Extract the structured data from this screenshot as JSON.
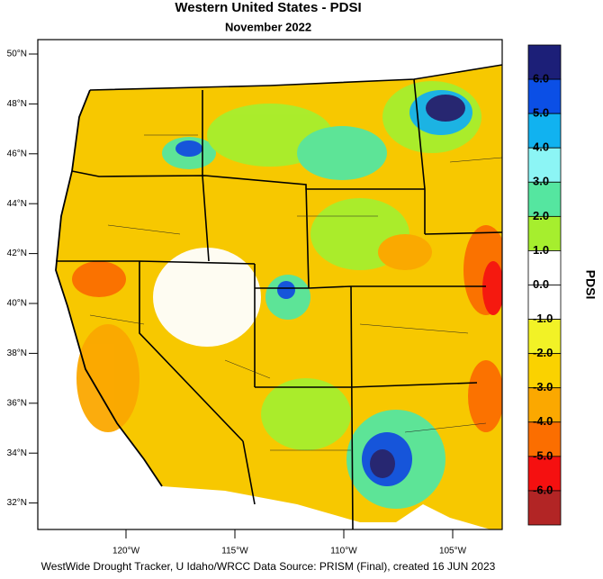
{
  "title": "Western United States - PDSI",
  "subtitle": "November 2022",
  "lat_labels": [
    "50°N",
    "48°N",
    "46°N",
    "44°N",
    "42°N",
    "40°N",
    "38°N",
    "36°N",
    "34°N",
    "32°N"
  ],
  "lon_labels": [
    "120°W",
    "115°W",
    "110°W",
    "105°W"
  ],
  "colorbar": {
    "title": "PDSI",
    "colors": [
      "#1c1f78",
      "#0b4fe6",
      "#11b2f0",
      "#8cf5f5",
      "#55e6a0",
      "#a6ee2e",
      "#ffffff",
      "#ffffff",
      "#f2f226",
      "#fad200",
      "#fba800",
      "#fb6e00",
      "#f51010",
      "#b22525"
    ],
    "ticks": [
      {
        "value": 6,
        "label": "6.0"
      },
      {
        "value": 5,
        "label": "5.0"
      },
      {
        "value": 4,
        "label": "4.0"
      },
      {
        "value": 3,
        "label": "3.0"
      },
      {
        "value": 2,
        "label": "2.0"
      },
      {
        "value": 1,
        "label": "1.0"
      },
      {
        "value": 0,
        "label": "0.0"
      },
      {
        "value": -1,
        "label": "-1.0"
      },
      {
        "value": -2,
        "label": "-2.0"
      },
      {
        "value": -3,
        "label": "-3.0"
      },
      {
        "value": -4,
        "label": "-4.0"
      },
      {
        "value": -5,
        "label": "-5.0"
      },
      {
        "value": -6,
        "label": "-6.0"
      }
    ]
  },
  "footer": "WestWide Drought Tracker, U Idaho/WRCC Data Source: PRISM (Final), created 16 JUN 2023"
}
